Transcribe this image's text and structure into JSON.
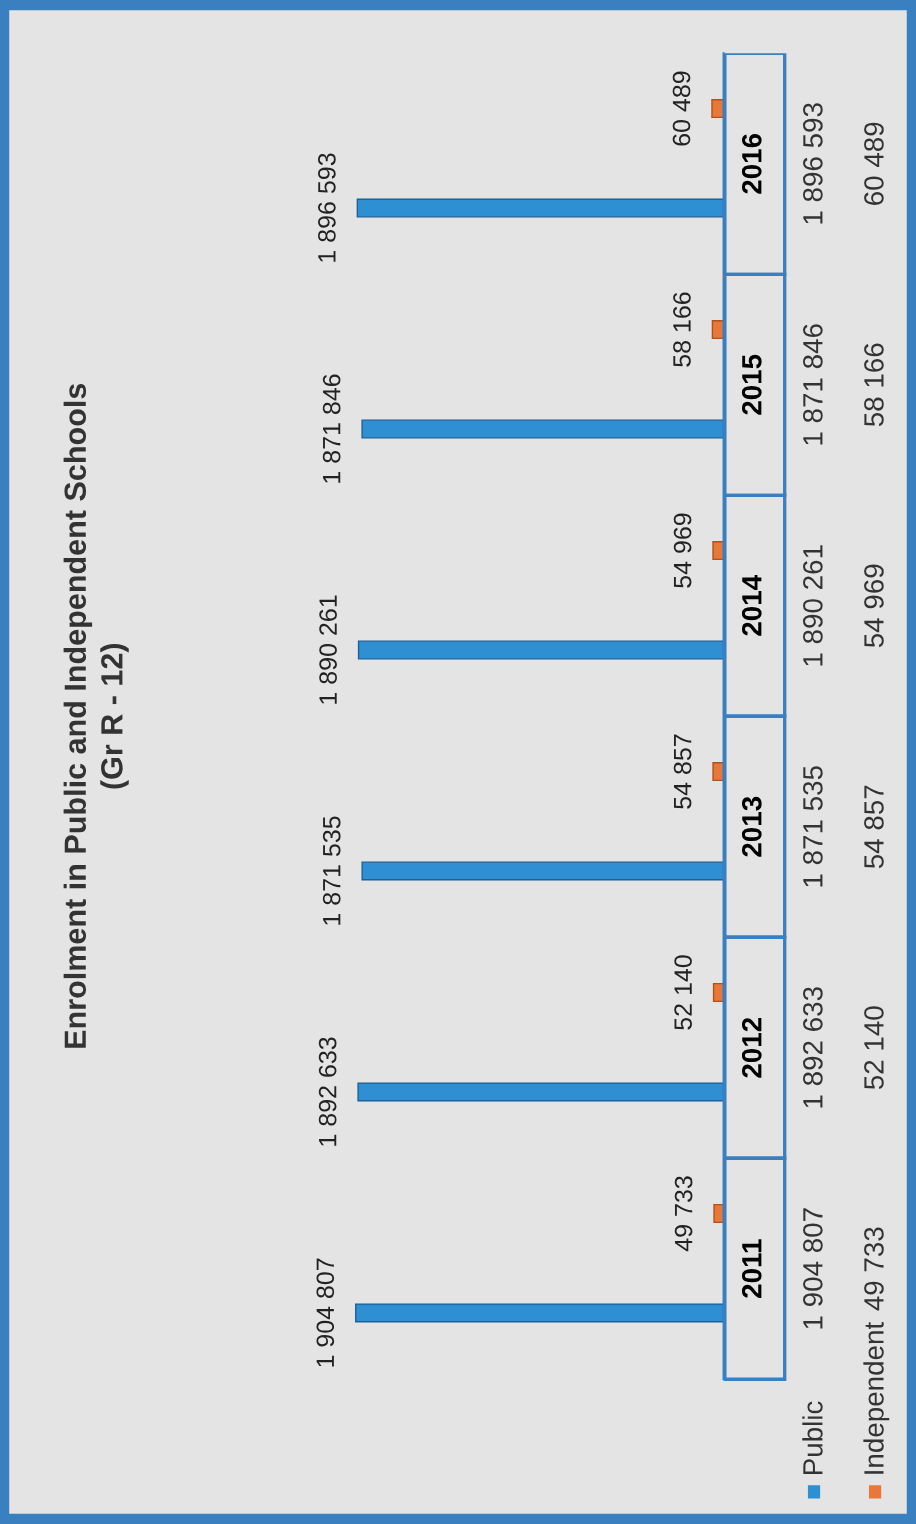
{
  "chart_data": {
    "type": "bar",
    "title": "Enrolment in Public and Independent Schools",
    "subtitle": "(Gr R - 12)",
    "orientation": "horizontal",
    "categories": [
      "2016",
      "2015",
      "2014",
      "2013",
      "2012",
      "2011"
    ],
    "series": [
      {
        "name": "Public",
        "color": "#2f8fd3",
        "values": [
          1896593,
          1871846,
          1890261,
          1871535,
          1892633,
          1904807
        ],
        "value_labels": [
          "1 896 593",
          "1 871 846",
          "1 890 261",
          "1 871 535",
          "1 892 633",
          "1 904 807"
        ]
      },
      {
        "name": "Independent",
        "color": "#e8783a",
        "values": [
          60489,
          58166,
          54969,
          54857,
          52140,
          49733
        ],
        "value_labels": [
          "60 489",
          "58 166",
          "54 969",
          "54 857",
          "52 140",
          "49 733"
        ]
      }
    ],
    "legend": "bottom"
  }
}
